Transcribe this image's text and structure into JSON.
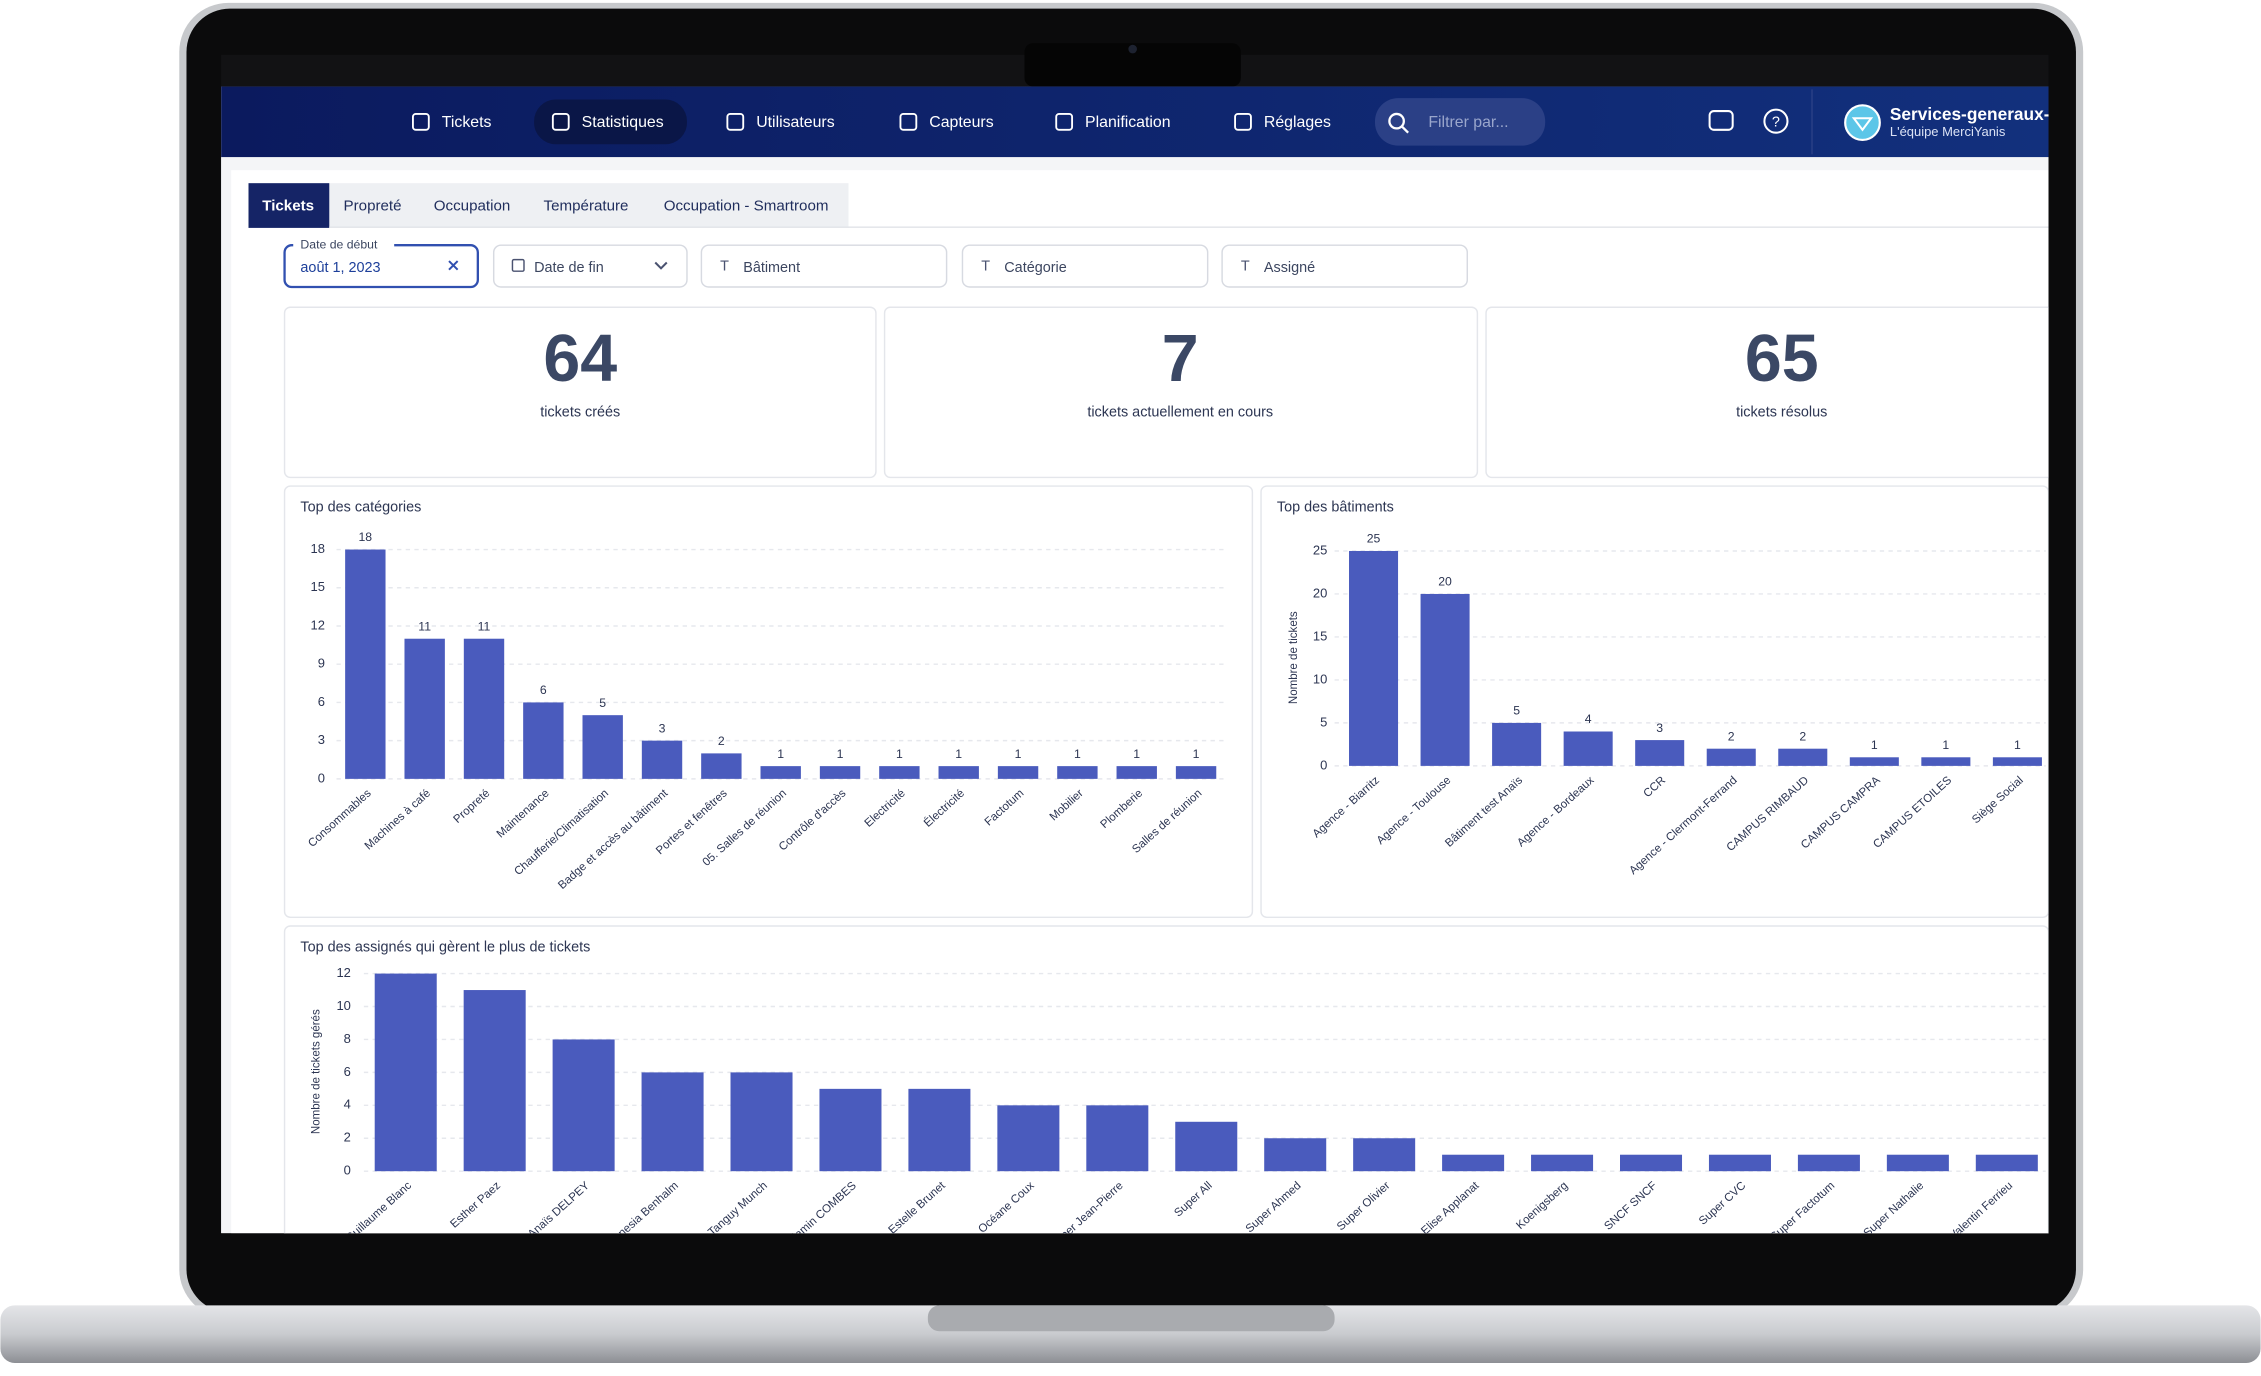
{
  "nav": {
    "items": [
      "Tickets",
      "Statistiques",
      "Utilisateurs",
      "Capteurs",
      "Planification",
      "Réglages"
    ],
    "search_placeholder": "Filtrer par...",
    "account_name": "Services-generaux-",
    "account_subtitle": "L'équipe MerciYanis"
  },
  "tabs": [
    "Tickets",
    "Propreté",
    "Occupation",
    "Température",
    "Occupation - Smartroom"
  ],
  "filters": {
    "start_date_label": "Date de début",
    "start_date_value": "août 1, 2023",
    "end_date": "Date de fin",
    "building": "Bâtiment",
    "category": "Catégorie",
    "assignee": "Assigné"
  },
  "kpis": [
    {
      "value": 64,
      "label": "tickets créés"
    },
    {
      "value": 7,
      "label": "tickets actuellement en cours"
    },
    {
      "value": 65,
      "label": "tickets résolus"
    }
  ],
  "chart_data": [
    {
      "type": "bar",
      "title": "Top des catégories",
      "categories": [
        "Consommables",
        "Machines à café",
        "Propreté",
        "Maintenance",
        "Chaufferie/Climatisation",
        "Badge et accès au bâtiment",
        "Portes et fenêtres",
        "05. Salles de réunion",
        "Contrôle d'accès",
        "Electricité",
        "Électricité",
        "Factotum",
        "Mobilier",
        "Plomberie",
        "Salles de réunion"
      ],
      "values": [
        18,
        11,
        11,
        6,
        5,
        3,
        2,
        1,
        1,
        1,
        1,
        1,
        1,
        1,
        1
      ],
      "color": "#4a5bbd",
      "ylim": [
        0,
        18
      ],
      "yticks": [
        0,
        3,
        6,
        9,
        12,
        15,
        18
      ],
      "grid": true
    },
    {
      "type": "bar",
      "title": "Top des bâtiments",
      "ylabel": "Nombre de tickets",
      "categories": [
        "Agence - Biarritz",
        "Agence - Toulouse",
        "Bâtiment test Anaïs",
        "Agence - Bordeaux",
        "CCR",
        "Agence - Clermont-Ferrand",
        "CAMPUS RIMBAUD",
        "CAMPUS CAMPRA",
        "CAMPUS ETOILES",
        "Siège Social"
      ],
      "values": [
        25,
        20,
        5,
        4,
        3,
        2,
        2,
        1,
        1,
        1
      ],
      "color": "#4a5bbd",
      "ylim": [
        0,
        25
      ],
      "yticks": [
        0,
        5,
        10,
        15,
        20,
        25
      ],
      "grid": true
    },
    {
      "type": "bar",
      "title": "Top des assignés qui gèrent le plus de tickets",
      "ylabel": "Nombre de tickets gérés",
      "categories": [
        "Guillaume Blanc",
        "Esther Paez",
        "Anaïs DELPEY",
        "Anesia Benhalm",
        "Tanguy Munch",
        "Benjamin COMBES",
        "Estelle Brunet",
        "Océane Coux",
        "Super Jean-Pierre",
        "Super All",
        "Super Ahmed",
        "Super Olivier",
        "Elise Applanat",
        "Koenigsberg",
        "SNCF SNCF",
        "Super CVC",
        "Super Factotum",
        "Super Nathalie",
        "Valentin Ferrieu"
      ],
      "values": [
        12,
        11,
        8,
        6,
        6,
        5,
        5,
        4,
        4,
        3,
        2,
        2,
        1,
        1,
        1,
        1,
        1,
        1,
        1
      ],
      "color": "#4a5bbd",
      "ylim": [
        0,
        12
      ],
      "yticks": [
        0,
        2,
        4,
        6,
        8,
        10,
        12
      ],
      "grid": true
    }
  ]
}
